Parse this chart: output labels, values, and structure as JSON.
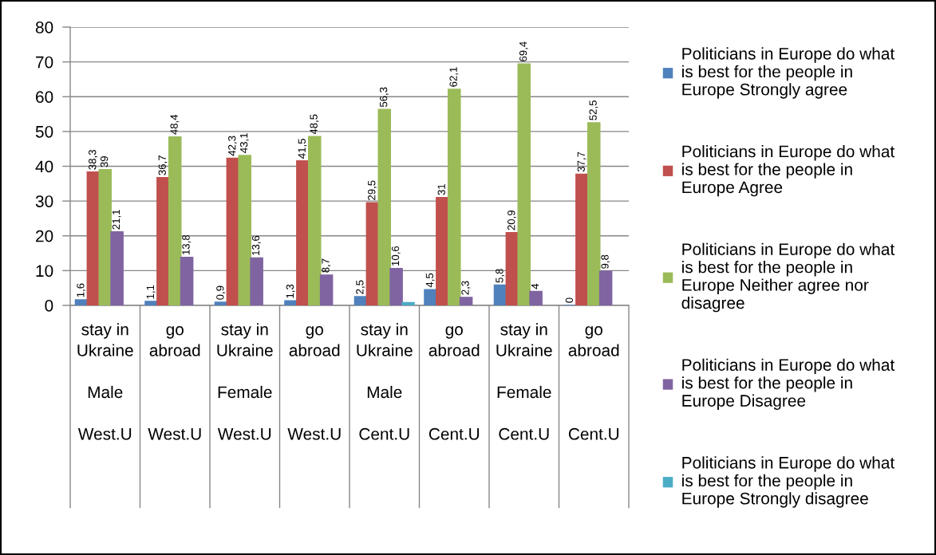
{
  "chart_data": {
    "type": "bar",
    "categories": [
      "stay in\nUkraine\n\nMale\n\nWest.U",
      "go\nabroad\n\n\n\nWest.U",
      "stay in\nUkraine\n\nFemale\n\nWest.U",
      "go\nabroad\n\n\n\nWest.U",
      "stay in\nUkraine\n\nMale\n\nCent.U",
      "go\nabroad\n\n\n\nCent.U",
      "stay in\nUkraine\n\nFemale\n\nCent.U",
      "go\nabroad\n\n\n\nCent.U"
    ],
    "series": [
      {
        "name": "Politicians in Europe do what\nis best for the people in\nEurope Strongly agree",
        "color": "#4f81bd",
        "values": [
          1.6,
          1.1,
          0.9,
          1.3,
          2.5,
          4.5,
          5.8,
          0
        ],
        "value_labels": [
          "1,6",
          "1,1",
          "0,9",
          "1,3",
          "2,5",
          "4,5",
          "5,8",
          "0"
        ]
      },
      {
        "name": "Politicians in Europe do what\nis best for the people in\nEurope Agree",
        "color": "#c0504d",
        "values": [
          38.3,
          36.7,
          42.3,
          41.5,
          29.5,
          31,
          20.9,
          37.7
        ],
        "value_labels": [
          "38,3",
          "36,7",
          "42,3",
          "41,5",
          "29,5",
          "31",
          "20,9",
          "37,7"
        ]
      },
      {
        "name": "Politicians in Europe do what\nis best for the people in\nEurope Neither agree nor\ndisagree",
        "color": "#9bbb59",
        "values": [
          39,
          48.4,
          43.1,
          48.5,
          56.3,
          62.1,
          69.4,
          52.5
        ],
        "value_labels": [
          "39",
          "48,4",
          "43,1",
          "48,5",
          "56,3",
          "62,1",
          "69,4",
          "52,5"
        ]
      },
      {
        "name": "Politicians in Europe do what\nis best for the people in\nEurope Disagree",
        "color": "#8064a2",
        "values": [
          21.1,
          13.8,
          13.6,
          8.7,
          10.6,
          2.3,
          4,
          9.8
        ],
        "value_labels": [
          "21,1",
          "13,8",
          "13,6",
          "8,7",
          "10,6",
          "2,3",
          "4",
          "9,8"
        ]
      },
      {
        "name": "Politicians in Europe do what\nis best for the people in\nEurope Strongly disagree",
        "color": "#4bacc6",
        "values": [
          null,
          null,
          null,
          null,
          0.8,
          null,
          null,
          null
        ]
      }
    ],
    "ylim": [
      0,
      80
    ],
    "yticks": [
      0,
      10,
      20,
      30,
      40,
      50,
      60,
      70,
      80
    ],
    "grid": "y",
    "legend": "right"
  }
}
